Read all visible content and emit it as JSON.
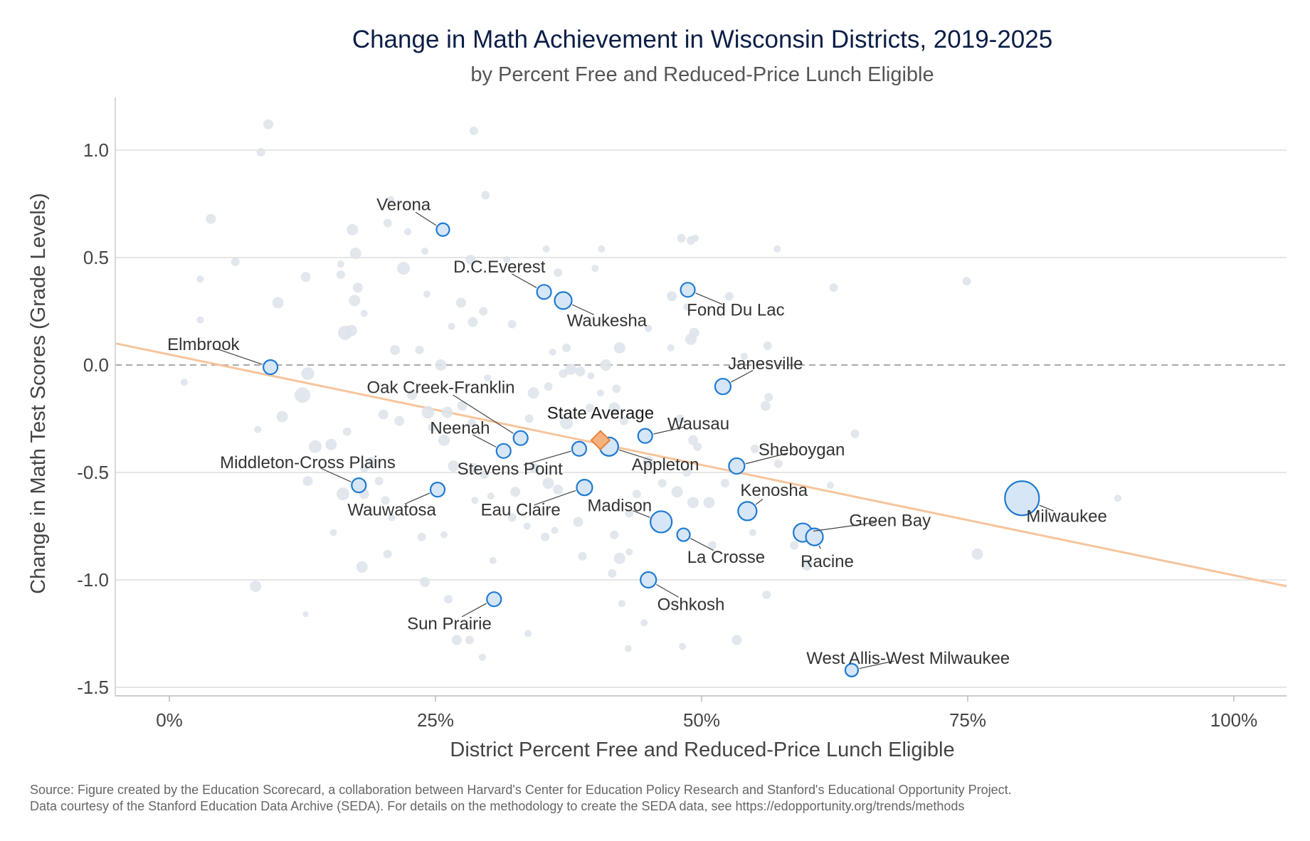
{
  "chart_data": {
    "type": "scatter",
    "title": "Change in Math Achievement in Wisconsin Districts, 2019-2025",
    "subtitle": "by Percent Free and Reduced-Price Lunch Eligible",
    "xlabel": "District Percent Free and Reduced-Price Lunch Eligible",
    "ylabel": "Change in Math Test Scores (Grade Levels)",
    "xlim": [
      -0.05,
      1.05
    ],
    "ylim": [
      -1.55,
      1.25
    ],
    "x_ticks": [
      {
        "value": 0,
        "label": "0%"
      },
      {
        "value": 0.25,
        "label": "25%"
      },
      {
        "value": 0.5,
        "label": "50%"
      },
      {
        "value": 0.75,
        "label": "75%"
      },
      {
        "value": 1.0,
        "label": "100%"
      }
    ],
    "y_ticks": [
      {
        "value": 1.0,
        "label": "1.0"
      },
      {
        "value": 0.5,
        "label": "0.5"
      },
      {
        "value": 0.0,
        "label": "0.0"
      },
      {
        "value": -0.5,
        "label": "-0.5"
      },
      {
        "value": -1.0,
        "label": "-1.0"
      },
      {
        "value": -1.5,
        "label": "-1.5"
      }
    ],
    "grid": true,
    "zero_line": "dashed",
    "colors": {
      "background_point": "#dce3ea",
      "highlight_fill": "#d6e6f6",
      "highlight_stroke": "#1f7ad1",
      "average_fill": "#f6b27d",
      "average_stroke": "#e8813a",
      "trend_line": "#f6c49b",
      "grid": "#dddddd",
      "zero_line": "#aaaaaa"
    },
    "trend_line": {
      "x": [
        -0.05,
        1.05
      ],
      "y": [
        0.1,
        -1.03
      ]
    },
    "state_average": {
      "label": "State Average",
      "x": 0.405,
      "y": -0.35
    },
    "highlighted": [
      {
        "name": "Verona",
        "x": 0.257,
        "y": 0.63,
        "size": 9
      },
      {
        "name": "D.C.Everest",
        "x": 0.352,
        "y": 0.34,
        "size": 10
      },
      {
        "name": "Waukesha",
        "x": 0.37,
        "y": 0.3,
        "size": 12
      },
      {
        "name": "Fond Du Lac",
        "x": 0.487,
        "y": 0.35,
        "size": 10
      },
      {
        "name": "Elmbrook",
        "x": 0.095,
        "y": -0.01,
        "size": 10
      },
      {
        "name": "Janesville",
        "x": 0.52,
        "y": -0.1,
        "size": 11
      },
      {
        "name": "Oak Creek-Franklin",
        "x": 0.33,
        "y": -0.34,
        "size": 10
      },
      {
        "name": "Neenah",
        "x": 0.314,
        "y": -0.4,
        "size": 10
      },
      {
        "name": "Wausau",
        "x": 0.447,
        "y": -0.33,
        "size": 10
      },
      {
        "name": "Appleton",
        "x": 0.413,
        "y": -0.38,
        "size": 13
      },
      {
        "name": "Stevens Point",
        "x": 0.385,
        "y": -0.39,
        "size": 10
      },
      {
        "name": "Sheboygan",
        "x": 0.533,
        "y": -0.47,
        "size": 11
      },
      {
        "name": "Middleton-Cross Plains",
        "x": 0.178,
        "y": -0.56,
        "size": 10
      },
      {
        "name": "Wauwatosa",
        "x": 0.252,
        "y": -0.58,
        "size": 10
      },
      {
        "name": "Eau Claire",
        "x": 0.39,
        "y": -0.57,
        "size": 11
      },
      {
        "name": "Kenosha",
        "x": 0.543,
        "y": -0.68,
        "size": 13
      },
      {
        "name": "Madison",
        "x": 0.462,
        "y": -0.73,
        "size": 15
      },
      {
        "name": "La Crosse",
        "x": 0.483,
        "y": -0.79,
        "size": 9
      },
      {
        "name": "Green Bay",
        "x": 0.595,
        "y": -0.78,
        "size": 13
      },
      {
        "name": "Racine",
        "x": 0.606,
        "y": -0.8,
        "size": 12
      },
      {
        "name": "Milwaukee",
        "x": 0.801,
        "y": -0.62,
        "size": 24
      },
      {
        "name": "Oshkosh",
        "x": 0.45,
        "y": -1.0,
        "size": 11
      },
      {
        "name": "Sun Prairie",
        "x": 0.305,
        "y": -1.09,
        "size": 10
      },
      {
        "name": "West Allis-West Milwaukee",
        "x": 0.641,
        "y": -1.42,
        "size": 9
      }
    ],
    "background_points": [
      [
        0.093,
        1.12,
        7
      ],
      [
        0.086,
        0.99,
        6
      ],
      [
        0.286,
        1.09,
        6
      ],
      [
        0.039,
        0.68,
        7
      ],
      [
        0.062,
        0.48,
        6
      ],
      [
        0.029,
        0.4,
        5
      ],
      [
        0.029,
        0.21,
        5
      ],
      [
        0.102,
        0.29,
        8
      ],
      [
        0.128,
        0.41,
        7
      ],
      [
        0.172,
        0.63,
        8
      ],
      [
        0.175,
        0.52,
        8
      ],
      [
        0.161,
        0.47,
        5
      ],
      [
        0.161,
        0.42,
        6
      ],
      [
        0.177,
        0.36,
        7
      ],
      [
        0.174,
        0.3,
        8
      ],
      [
        0.171,
        0.16,
        8
      ],
      [
        0.183,
        0.24,
        5
      ],
      [
        0.205,
        0.66,
        6
      ],
      [
        0.208,
        0.77,
        5
      ],
      [
        0.224,
        0.62,
        5
      ],
      [
        0.22,
        0.45,
        9
      ],
      [
        0.24,
        0.53,
        5
      ],
      [
        0.297,
        0.79,
        6
      ],
      [
        0.283,
        0.49,
        7
      ],
      [
        0.317,
        0.49,
        5
      ],
      [
        0.354,
        0.54,
        5
      ],
      [
        0.365,
        0.43,
        6
      ],
      [
        0.406,
        0.54,
        5
      ],
      [
        0.4,
        0.45,
        5
      ],
      [
        0.481,
        0.59,
        6
      ],
      [
        0.49,
        0.58,
        6
      ],
      [
        0.494,
        0.59,
        5
      ],
      [
        0.571,
        0.54,
        5
      ],
      [
        0.749,
        0.39,
        6
      ],
      [
        0.624,
        0.36,
        6
      ],
      [
        0.472,
        0.32,
        7
      ],
      [
        0.526,
        0.32,
        6
      ],
      [
        0.486,
        0.27,
        5
      ],
      [
        0.493,
        0.15,
        7
      ],
      [
        0.49,
        0.12,
        8
      ],
      [
        0.471,
        0.08,
        5
      ],
      [
        0.45,
        0.17,
        5
      ],
      [
        0.54,
        0.04,
        5
      ],
      [
        0.562,
        0.09,
        6
      ],
      [
        0.423,
        0.08,
        8
      ],
      [
        0.41,
        0.0,
        8
      ],
      [
        0.373,
        0.08,
        6
      ],
      [
        0.36,
        0.06,
        5
      ],
      [
        0.322,
        0.19,
        6
      ],
      [
        0.295,
        0.25,
        6
      ],
      [
        0.285,
        0.2,
        7
      ],
      [
        0.274,
        0.29,
        7
      ],
      [
        0.265,
        0.18,
        5
      ],
      [
        0.242,
        0.33,
        5
      ],
      [
        0.235,
        0.07,
        6
      ],
      [
        0.255,
        0.0,
        8
      ],
      [
        0.212,
        0.07,
        7
      ],
      [
        0.165,
        0.15,
        10
      ],
      [
        0.13,
        -0.04,
        9
      ],
      [
        0.125,
        -0.14,
        11
      ],
      [
        0.106,
        -0.24,
        8
      ],
      [
        0.083,
        -0.3,
        5
      ],
      [
        0.137,
        -0.38,
        9
      ],
      [
        0.152,
        -0.37,
        8
      ],
      [
        0.167,
        -0.31,
        6
      ],
      [
        0.014,
        -0.08,
        5
      ],
      [
        0.13,
        -0.54,
        7
      ],
      [
        0.163,
        -0.6,
        9
      ],
      [
        0.183,
        -0.48,
        6
      ],
      [
        0.183,
        -0.6,
        7
      ],
      [
        0.197,
        -0.54,
        6
      ],
      [
        0.19,
        -0.45,
        7
      ],
      [
        0.203,
        -0.63,
        6
      ],
      [
        0.209,
        -0.71,
        5
      ],
      [
        0.205,
        -0.88,
        6
      ],
      [
        0.154,
        -0.78,
        5
      ],
      [
        0.181,
        -0.94,
        8
      ],
      [
        0.081,
        -1.03,
        8
      ],
      [
        0.128,
        -1.16,
        4
      ],
      [
        0.201,
        -0.23,
        7
      ],
      [
        0.216,
        -0.26,
        7
      ],
      [
        0.228,
        -0.14,
        7
      ],
      [
        0.243,
        -0.22,
        9
      ],
      [
        0.247,
        -0.29,
        6
      ],
      [
        0.258,
        -0.35,
        8
      ],
      [
        0.261,
        -0.22,
        8
      ],
      [
        0.275,
        -0.19,
        7
      ],
      [
        0.284,
        -0.27,
        6
      ],
      [
        0.267,
        -0.47,
        8
      ],
      [
        0.286,
        -0.48,
        7
      ],
      [
        0.296,
        -0.51,
        6
      ],
      [
        0.302,
        -0.61,
        5
      ],
      [
        0.287,
        -0.63,
        5
      ],
      [
        0.258,
        -0.79,
        5
      ],
      [
        0.237,
        -0.8,
        6
      ],
      [
        0.24,
        -1.01,
        7
      ],
      [
        0.262,
        -1.09,
        6
      ],
      [
        0.27,
        -1.28,
        7
      ],
      [
        0.282,
        -1.28,
        6
      ],
      [
        0.294,
        -1.36,
        5
      ],
      [
        0.304,
        -0.91,
        5
      ],
      [
        0.325,
        -0.59,
        7
      ],
      [
        0.322,
        -0.71,
        6
      ],
      [
        0.336,
        -0.75,
        5
      ],
      [
        0.353,
        -0.8,
        6
      ],
      [
        0.362,
        -0.77,
        5
      ],
      [
        0.343,
        -0.48,
        7
      ],
      [
        0.356,
        -0.55,
        8
      ],
      [
        0.365,
        -0.58,
        7
      ],
      [
        0.338,
        -0.25,
        6
      ],
      [
        0.342,
        -0.13,
        8
      ],
      [
        0.356,
        -0.1,
        6
      ],
      [
        0.37,
        -0.04,
        6
      ],
      [
        0.377,
        -0.02,
        8
      ],
      [
        0.386,
        -0.03,
        7
      ],
      [
        0.396,
        -0.05,
        5
      ],
      [
        0.373,
        -0.27,
        9
      ],
      [
        0.395,
        -0.2,
        6
      ],
      [
        0.405,
        -0.13,
        5
      ],
      [
        0.42,
        -0.11,
        6
      ],
      [
        0.418,
        -0.2,
        8
      ],
      [
        0.427,
        -0.26,
        6
      ],
      [
        0.384,
        -0.73,
        7
      ],
      [
        0.388,
        -0.89,
        6
      ],
      [
        0.418,
        -0.79,
        6
      ],
      [
        0.423,
        -0.9,
        8
      ],
      [
        0.416,
        -0.97,
        6
      ],
      [
        0.432,
        -0.87,
        5
      ],
      [
        0.432,
        -0.69,
        6
      ],
      [
        0.439,
        -0.6,
        6
      ],
      [
        0.45,
        -0.45,
        8
      ],
      [
        0.463,
        -0.55,
        6
      ],
      [
        0.477,
        -0.59,
        8
      ],
      [
        0.486,
        -0.5,
        6
      ],
      [
        0.492,
        -0.64,
        8
      ],
      [
        0.496,
        -0.38,
        6
      ],
      [
        0.48,
        -0.25,
        6
      ],
      [
        0.492,
        -0.35,
        7
      ],
      [
        0.507,
        -0.64,
        8
      ],
      [
        0.51,
        -0.84,
        6
      ],
      [
        0.522,
        -0.55,
        6
      ],
      [
        0.55,
        -0.39,
        6
      ],
      [
        0.56,
        -0.19,
        7
      ],
      [
        0.563,
        -0.15,
        6
      ],
      [
        0.572,
        -0.46,
        6
      ],
      [
        0.587,
        -0.84,
        6
      ],
      [
        0.599,
        -0.93,
        8
      ],
      [
        0.561,
        -1.07,
        6
      ],
      [
        0.533,
        -1.28,
        7
      ],
      [
        0.548,
        -0.78,
        5
      ],
      [
        0.621,
        -0.56,
        5
      ],
      [
        0.644,
        -0.32,
        6
      ],
      [
        0.759,
        -0.88,
        8
      ],
      [
        0.891,
        -0.62,
        5
      ],
      [
        0.446,
        -1.2,
        5
      ],
      [
        0.431,
        -1.32,
        5
      ],
      [
        0.482,
        -1.31,
        5
      ],
      [
        0.337,
        -1.25,
        5
      ],
      [
        0.425,
        -1.11,
        5
      ],
      [
        0.299,
        -0.06,
        5
      ]
    ],
    "annotations": [
      {
        "text": "Verona",
        "label_x": 0.22,
        "label_y": 0.72,
        "anchor": "middle"
      },
      {
        "text": "D.C.Everest",
        "label_x": 0.31,
        "label_y": 0.43,
        "anchor": "middle"
      },
      {
        "text": "Waukesha",
        "label_x": 0.411,
        "label_y": 0.18,
        "anchor": "middle"
      },
      {
        "text": "Fond Du Lac",
        "label_x": 0.532,
        "label_y": 0.23,
        "anchor": "middle"
      },
      {
        "text": "Elmbrook",
        "label_x": 0.032,
        "label_y": 0.07,
        "anchor": "middle"
      },
      {
        "text": "Janesville",
        "label_x": 0.56,
        "label_y": -0.02,
        "anchor": "middle"
      },
      {
        "text": "Oak Creek-Franklin",
        "label_x": 0.255,
        "label_y": -0.13,
        "anchor": "middle"
      },
      {
        "text": "Neenah",
        "label_x": 0.273,
        "label_y": -0.32,
        "anchor": "middle"
      },
      {
        "text": "State Average",
        "label_x": 0.405,
        "label_y": -0.25,
        "anchor": "middle"
      },
      {
        "text": "Wausau",
        "label_x": 0.497,
        "label_y": -0.3,
        "anchor": "middle"
      },
      {
        "text": "Appleton",
        "label_x": 0.466,
        "label_y": -0.49,
        "anchor": "middle"
      },
      {
        "text": "Stevens Point",
        "label_x": 0.32,
        "label_y": -0.51,
        "anchor": "middle"
      },
      {
        "text": "Sheboygan",
        "label_x": 0.594,
        "label_y": -0.42,
        "anchor": "middle"
      },
      {
        "text": "Middleton-Cross Plains",
        "label_x": 0.13,
        "label_y": -0.48,
        "anchor": "middle"
      },
      {
        "text": "Wauwatosa",
        "label_x": 0.209,
        "label_y": -0.7,
        "anchor": "middle"
      },
      {
        "text": "Eau Claire",
        "label_x": 0.33,
        "label_y": -0.7,
        "anchor": "middle"
      },
      {
        "text": "Kenosha",
        "label_x": 0.568,
        "label_y": -0.61,
        "anchor": "middle"
      },
      {
        "text": "Madison",
        "label_x": 0.423,
        "label_y": -0.68,
        "anchor": "middle"
      },
      {
        "text": "La Crosse",
        "label_x": 0.523,
        "label_y": -0.92,
        "anchor": "middle"
      },
      {
        "text": "Green Bay",
        "label_x": 0.677,
        "label_y": -0.75,
        "anchor": "middle"
      },
      {
        "text": "Racine",
        "label_x": 0.618,
        "label_y": -0.94,
        "anchor": "middle"
      },
      {
        "text": "Milwaukee",
        "label_x": 0.843,
        "label_y": -0.73,
        "anchor": "middle"
      },
      {
        "text": "Oshkosh",
        "label_x": 0.49,
        "label_y": -1.14,
        "anchor": "middle"
      },
      {
        "text": "Sun Prairie",
        "label_x": 0.263,
        "label_y": -1.23,
        "anchor": "middle"
      },
      {
        "text": "West Allis-West Milwaukee",
        "label_x": 0.694,
        "label_y": -1.39,
        "anchor": "middle"
      }
    ]
  },
  "footer": {
    "source_line1": "Source: Figure created by the Education Scorecard, a collaboration between Harvard's Center for Education Policy Research and Stanford's Educational Opportunity Project.",
    "source_line2": "Data courtesy of the Stanford Education Data Archive (SEDA). For details on the methodology to create the SEDA data, see https://edopportunity.org/trends/methods"
  }
}
